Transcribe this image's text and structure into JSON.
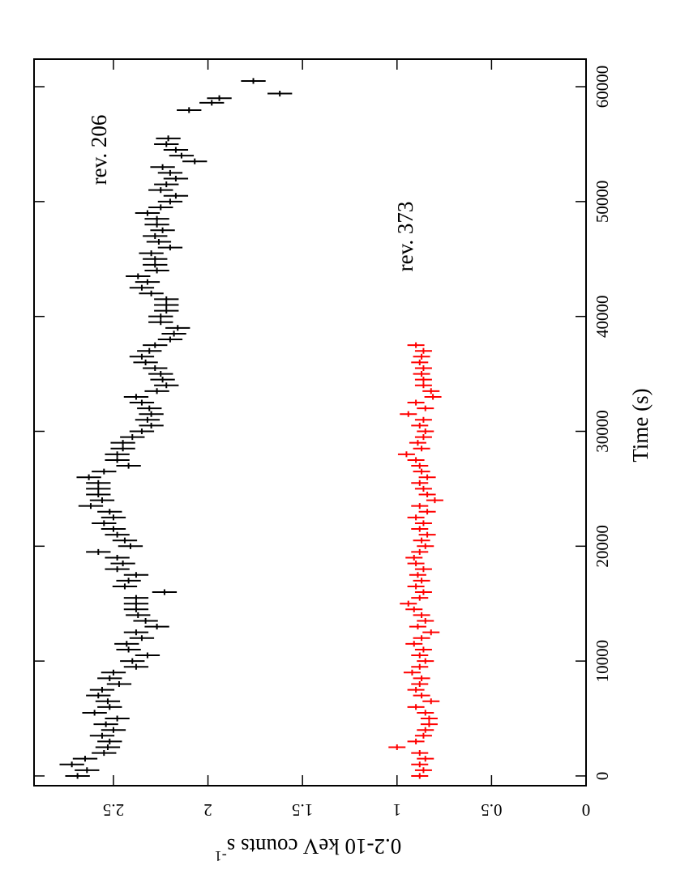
{
  "chart_data": {
    "type": "errorbar",
    "xlabel": "Time  (s)",
    "ylabel": "0.2-10 keV counts s",
    "ylabel_sup": "-1",
    "xlim": [
      -850,
      62400
    ],
    "ylim": [
      0,
      2.92
    ],
    "xticks": [
      0,
      10000,
      20000,
      30000,
      40000,
      50000,
      60000
    ],
    "yticks": [
      0,
      0.5,
      1,
      1.5,
      2,
      2.5
    ],
    "annotations": [
      "rev. 206",
      "rev. 373"
    ],
    "series": [
      {
        "name": "rev. 206",
        "color": "#000000",
        "error": 0.065,
        "x": [
          0,
          500,
          1000,
          1500,
          2000,
          2500,
          3000,
          3500,
          4000,
          4500,
          5000,
          5500,
          6000,
          6500,
          7000,
          7500,
          8000,
          8500,
          9000,
          9500,
          10000,
          10500,
          11000,
          11500,
          12000,
          12500,
          13000,
          13500,
          14000,
          14500,
          15000,
          15500,
          16000,
          16500,
          17000,
          17500,
          18000,
          18500,
          19000,
          19500,
          20000,
          20500,
          21000,
          21500,
          22000,
          22500,
          23000,
          23500,
          24000,
          24500,
          25000,
          25500,
          26000,
          26500,
          27000,
          27500,
          28000,
          28500,
          29000,
          29500,
          30000,
          30500,
          31000,
          31500,
          32000,
          32500,
          33000,
          33500,
          34000,
          34500,
          35000,
          35500,
          36000,
          36500,
          37000,
          37500,
          38000,
          38500,
          39000,
          39500,
          40000,
          40500,
          41000,
          41500,
          42000,
          42500,
          43000,
          43500,
          44000,
          44500,
          45000,
          45500,
          46000,
          46500,
          47000,
          47500,
          48000,
          48500,
          49000,
          49500,
          50000,
          50500,
          51000,
          51500,
          52000,
          52500,
          53000,
          53500,
          54000,
          54500,
          55000,
          55500,
          57960,
          58600,
          59000,
          59400,
          60500
        ],
        "values": [
          2.69,
          2.64,
          2.72,
          2.65,
          2.55,
          2.53,
          2.52,
          2.56,
          2.5,
          2.54,
          2.48,
          2.6,
          2.52,
          2.53,
          2.58,
          2.56,
          2.47,
          2.52,
          2.5,
          2.38,
          2.4,
          2.32,
          2.42,
          2.43,
          2.35,
          2.38,
          2.27,
          2.33,
          2.37,
          2.38,
          2.38,
          2.38,
          2.23,
          2.44,
          2.42,
          2.38,
          2.48,
          2.45,
          2.48,
          2.58,
          2.41,
          2.44,
          2.48,
          2.5,
          2.55,
          2.5,
          2.52,
          2.62,
          2.56,
          2.58,
          2.58,
          2.58,
          2.63,
          2.55,
          2.42,
          2.48,
          2.48,
          2.45,
          2.45,
          2.4,
          2.35,
          2.3,
          2.32,
          2.3,
          2.31,
          2.35,
          2.38,
          2.27,
          2.22,
          2.24,
          2.25,
          2.28,
          2.33,
          2.35,
          2.31,
          2.28,
          2.2,
          2.18,
          2.16,
          2.25,
          2.25,
          2.22,
          2.22,
          2.22,
          2.3,
          2.35,
          2.32,
          2.37,
          2.27,
          2.28,
          2.28,
          2.3,
          2.2,
          2.26,
          2.28,
          2.24,
          2.27,
          2.27,
          2.32,
          2.25,
          2.2,
          2.17,
          2.25,
          2.22,
          2.17,
          2.2,
          2.24,
          2.07,
          2.14,
          2.17,
          2.22,
          2.21,
          2.1,
          1.98,
          1.94,
          1.62,
          1.76
        ]
      },
      {
        "name": "rev. 373",
        "color": "#ff0000",
        "error": 0.045,
        "x": [
          0,
          500,
          1000,
          1500,
          2000,
          2500,
          3000,
          3500,
          4000,
          4500,
          5000,
          5500,
          6000,
          6500,
          7000,
          7500,
          8000,
          8500,
          9000,
          9500,
          10000,
          10500,
          11000,
          11500,
          12000,
          12500,
          13000,
          13500,
          14000,
          14500,
          15000,
          15500,
          16000,
          16500,
          17000,
          17500,
          18000,
          18500,
          19000,
          19500,
          20000,
          20500,
          21000,
          21500,
          22000,
          22500,
          23000,
          23500,
          24000,
          24500,
          25000,
          25500,
          26000,
          26500,
          27000,
          27500,
          28000,
          28500,
          29000,
          29500,
          30000,
          30500,
          31000,
          31500,
          32000,
          32500,
          33000,
          33500,
          34000,
          34500,
          35000,
          35500,
          36000,
          36500,
          37000,
          37500
        ],
        "values": [
          0.88,
          0.86,
          0.88,
          0.85,
          0.88,
          1.0,
          0.9,
          0.86,
          0.85,
          0.83,
          0.83,
          0.85,
          0.9,
          0.82,
          0.87,
          0.9,
          0.88,
          0.87,
          0.92,
          0.88,
          0.85,
          0.88,
          0.86,
          0.91,
          0.87,
          0.82,
          0.89,
          0.85,
          0.87,
          0.91,
          0.94,
          0.88,
          0.86,
          0.9,
          0.87,
          0.89,
          0.86,
          0.9,
          0.91,
          0.88,
          0.85,
          0.87,
          0.84,
          0.88,
          0.86,
          0.9,
          0.84,
          0.88,
          0.8,
          0.84,
          0.86,
          0.88,
          0.84,
          0.87,
          0.88,
          0.9,
          0.95,
          0.87,
          0.89,
          0.86,
          0.85,
          0.88,
          0.86,
          0.94,
          0.85,
          0.9,
          0.81,
          0.82,
          0.86,
          0.86,
          0.87,
          0.86,
          0.88,
          0.87,
          0.86,
          0.9
        ]
      }
    ]
  }
}
